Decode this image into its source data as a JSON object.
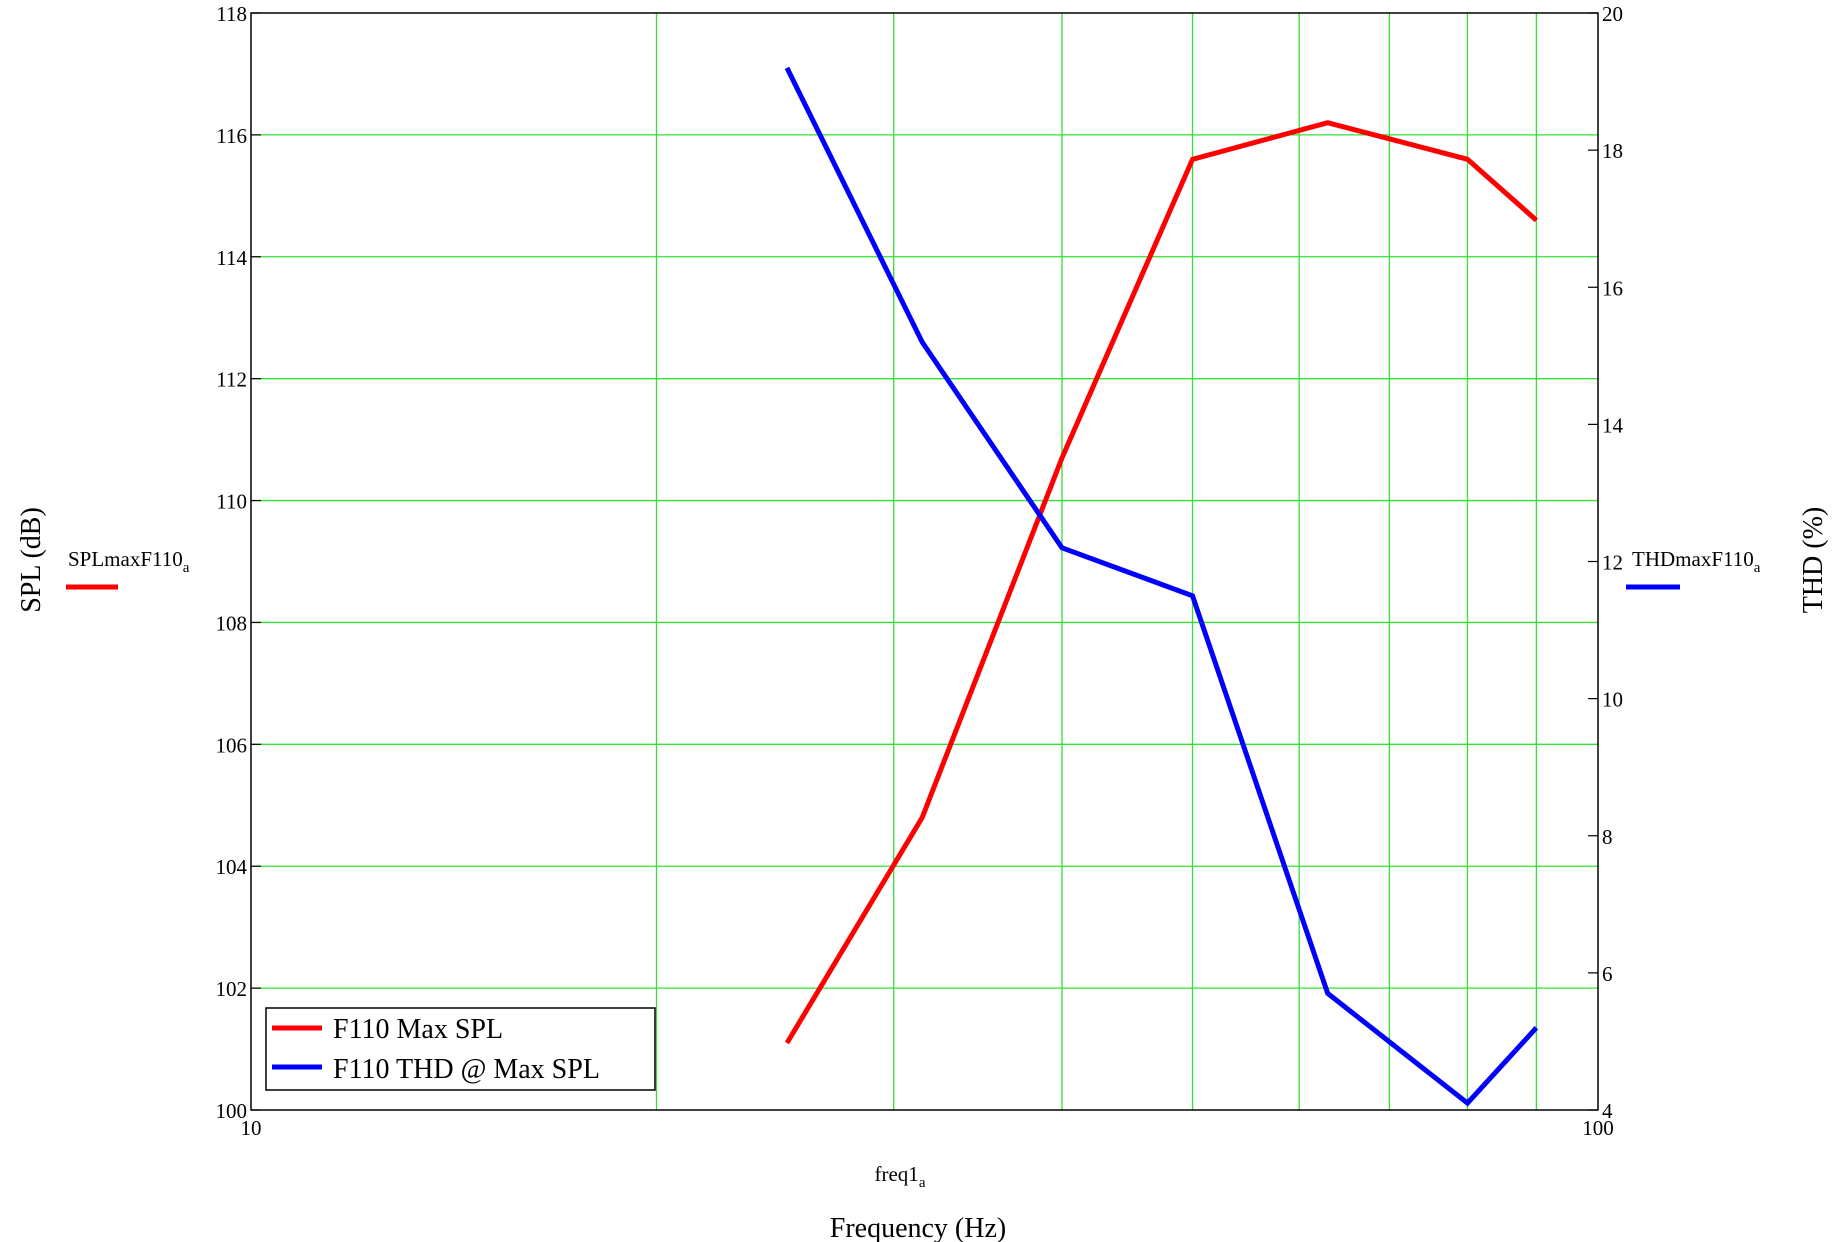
{
  "chart_data": {
    "type": "line",
    "x_scale": "log",
    "xlim": [
      10,
      100
    ],
    "ylim": [
      100,
      118
    ],
    "y2lim": [
      4,
      20
    ],
    "grid": true,
    "x_ticks": [
      "10",
      "100"
    ],
    "y_ticks": [
      "100",
      "102",
      "104",
      "106",
      "108",
      "110",
      "112",
      "114",
      "116",
      "118"
    ],
    "y2_ticks": [
      "4",
      "6",
      "8",
      "10",
      "12",
      "14",
      "16",
      "18",
      "20"
    ],
    "xlabel": "Frequency (Hz)",
    "ylabel": "SPL (dB)",
    "y2label": "THD (%)",
    "x_var": "freq1",
    "x_var_sub": "a",
    "y_var": "SPLmaxF110",
    "y_var_sub": "a",
    "y2_var": "THDmaxF110",
    "y2_var_sub": "a",
    "legend_position": "bottom-left",
    "series": [
      {
        "name": "F110 Max SPL",
        "axis": "left",
        "color": "#ff0000",
        "x": [
          25,
          31.5,
          40,
          50,
          63,
          80,
          90
        ],
        "y": [
          101.1,
          104.8,
          110.7,
          115.6,
          116.2,
          115.6,
          114.6
        ]
      },
      {
        "name": "F110 THD @ Max SPL",
        "axis": "right",
        "color": "#0000ff",
        "x": [
          25,
          31.5,
          40,
          50,
          63,
          80,
          90
        ],
        "y": [
          19.2,
          15.2,
          12.2,
          11.5,
          5.7,
          4.1,
          5.2
        ]
      }
    ]
  }
}
